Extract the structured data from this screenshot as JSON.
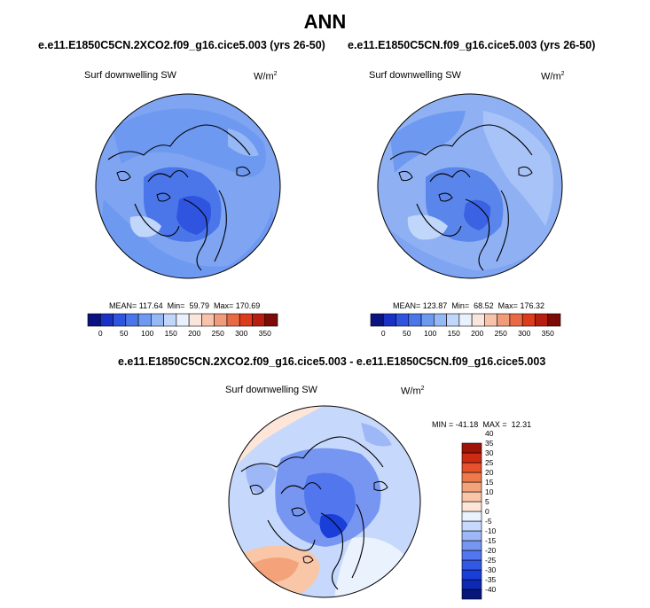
{
  "figure": {
    "title": "ANN"
  },
  "chart_data": [
    {
      "type": "heatmap",
      "projection": "north polar stereographic",
      "title": "e.e11.E1850C5CN.2XCO2.f09_g16.cice5.003 (yrs 26-50)",
      "variable": "Surf downwelling SW",
      "units_base": "W/m",
      "units_exp": "2",
      "stats": {
        "mean_label": "MEAN=",
        "mean": "117.64",
        "min_label": "Min=",
        "min": "59.79",
        "max_label": "Max=",
        "max": "170.69"
      },
      "colorbar": {
        "orientation": "horizontal",
        "levels": [
          0,
          25,
          50,
          75,
          100,
          125,
          150,
          175,
          200,
          225,
          250,
          275,
          300,
          325,
          350
        ],
        "tick_labels": [
          "0",
          "50",
          "100",
          "150",
          "200",
          "250",
          "300",
          "350"
        ],
        "colors": [
          "#0a1380",
          "#1b31c4",
          "#2f55e0",
          "#4a76ea",
          "#6e99f0",
          "#96b8f5",
          "#c0d6fa",
          "#e9f1fd",
          "#fbe6dd",
          "#f8c3ab",
          "#f09b7a",
          "#e86a45",
          "#dc3b1c",
          "#b81e0f",
          "#7c0a07"
        ]
      }
    },
    {
      "type": "heatmap",
      "projection": "north polar stereographic",
      "title": "e.e11.E1850C5CN.f09_g16.cice5.003 (yrs 26-50)",
      "variable": "Surf downwelling SW",
      "units_base": "W/m",
      "units_exp": "2",
      "stats": {
        "mean_label": "MEAN=",
        "mean": "123.87",
        "min_label": "Min=",
        "min": "68.52",
        "max_label": "Max=",
        "max": "176.32"
      },
      "colorbar": {
        "orientation": "horizontal",
        "levels": [
          0,
          25,
          50,
          75,
          100,
          125,
          150,
          175,
          200,
          225,
          250,
          275,
          300,
          325,
          350
        ],
        "tick_labels": [
          "0",
          "50",
          "100",
          "150",
          "200",
          "250",
          "300",
          "350"
        ],
        "colors": [
          "#0a1380",
          "#1b31c4",
          "#2f55e0",
          "#4a76ea",
          "#6e99f0",
          "#96b8f5",
          "#c0d6fa",
          "#e9f1fd",
          "#fbe6dd",
          "#f8c3ab",
          "#f09b7a",
          "#e86a45",
          "#dc3b1c",
          "#b81e0f",
          "#7c0a07"
        ]
      }
    },
    {
      "type": "heatmap",
      "projection": "north polar stereographic",
      "title": "e.e11.E1850C5CN.2XCO2.f09_g16.cice5.003 - e.e11.E1850C5CN.f09_g16.cice5.003",
      "variable": "Surf downwelling SW",
      "units_base": "W/m",
      "units_exp": "2",
      "stats": {
        "min_label": "MIN =",
        "min": "-41.18",
        "max_label": "MAX =",
        "max": "12.31"
      },
      "colorbar": {
        "orientation": "vertical",
        "levels": [
          -40,
          -35,
          -30,
          -25,
          -20,
          -15,
          -10,
          -5,
          0,
          5,
          10,
          15,
          20,
          25,
          30,
          35,
          40
        ],
        "tick_labels": [
          "-40",
          "-35",
          "-30",
          "-25",
          "-20",
          "-15",
          "-10",
          "-5",
          "0",
          "5",
          "10",
          "15",
          "20",
          "25",
          "30",
          "35",
          "40"
        ],
        "colors": [
          "#06167a",
          "#0d28b4",
          "#1a3fd8",
          "#3158e6",
          "#5176ee",
          "#7696f2",
          "#9eb7f6",
          "#c6d8fb",
          "#eaf2fe",
          "#fde6d8",
          "#f9c6a8",
          "#f4a27a",
          "#ee7a4c",
          "#e4512a",
          "#cd2b12",
          "#9e1207"
        ]
      }
    }
  ]
}
